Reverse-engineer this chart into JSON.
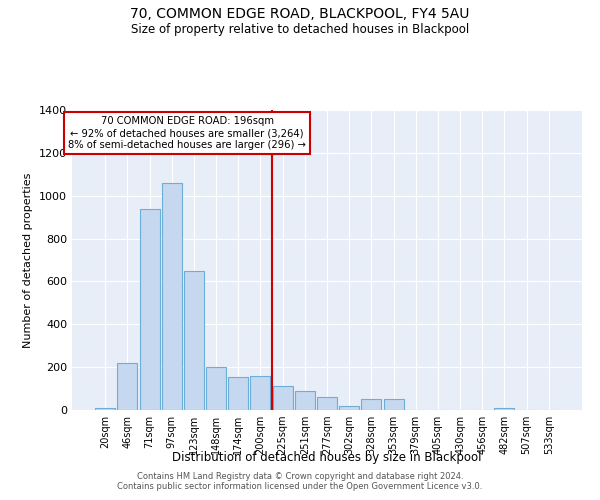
{
  "title": "70, COMMON EDGE ROAD, BLACKPOOL, FY4 5AU",
  "subtitle": "Size of property relative to detached houses in Blackpool",
  "xlabel": "Distribution of detached houses by size in Blackpool",
  "ylabel": "Number of detached properties",
  "categories": [
    "20sqm",
    "46sqm",
    "71sqm",
    "97sqm",
    "123sqm",
    "148sqm",
    "174sqm",
    "200sqm",
    "225sqm",
    "251sqm",
    "277sqm",
    "302sqm",
    "328sqm",
    "353sqm",
    "379sqm",
    "405sqm",
    "430sqm",
    "456sqm",
    "482sqm",
    "507sqm",
    "533sqm"
  ],
  "values": [
    10,
    220,
    940,
    1060,
    650,
    200,
    155,
    160,
    110,
    90,
    60,
    20,
    50,
    50,
    0,
    0,
    0,
    0,
    10,
    0,
    0
  ],
  "bar_color": "#c5d8ef",
  "bar_edgecolor": "#6baed6",
  "background_color": "#e8eef8",
  "grid_color": "#ffffff",
  "vline_color": "#cc0000",
  "vline_index": 7.5,
  "annotation_text": "70 COMMON EDGE ROAD: 196sqm\n← 92% of detached houses are smaller (3,264)\n8% of semi-detached houses are larger (296) →",
  "annotation_box_color": "#cc0000",
  "ylim": [
    0,
    1400
  ],
  "yticks": [
    0,
    200,
    400,
    600,
    800,
    1000,
    1200,
    1400
  ],
  "footer_line1": "Contains HM Land Registry data © Crown copyright and database right 2024.",
  "footer_line2": "Contains public sector information licensed under the Open Government Licence v3.0."
}
